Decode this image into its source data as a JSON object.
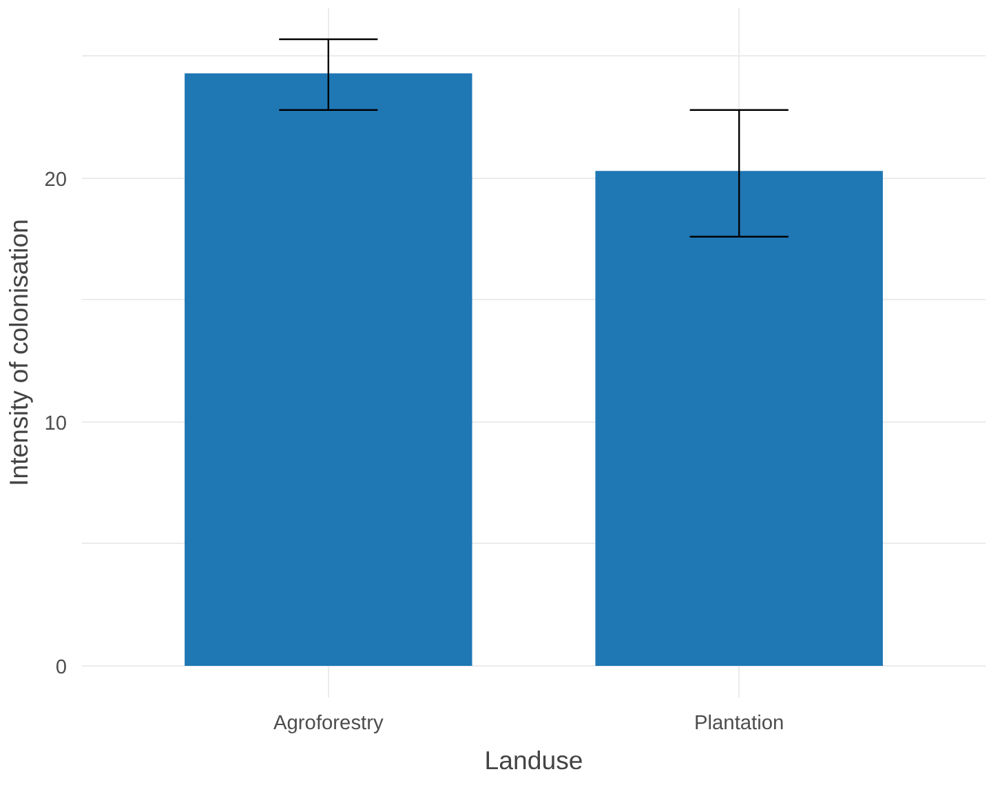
{
  "chart_data": {
    "type": "bar",
    "xlabel": "Landuse",
    "ylabel": "Intensity of colonisation",
    "categories": [
      "Agroforestry",
      "Plantation"
    ],
    "values": [
      24.3,
      20.3
    ],
    "errors": [
      [
        22.8,
        25.7
      ],
      [
        17.6,
        22.8
      ]
    ],
    "color": "#1f77b4",
    "ylim": [
      -1.3,
      27.0
    ],
    "yticks": [
      0,
      {
        "value": 5,
        "label": null
      },
      10,
      {
        "value": 15,
        "label": null
      },
      20,
      {
        "value": 25,
        "label": null
      }
    ],
    "grid": true
  }
}
